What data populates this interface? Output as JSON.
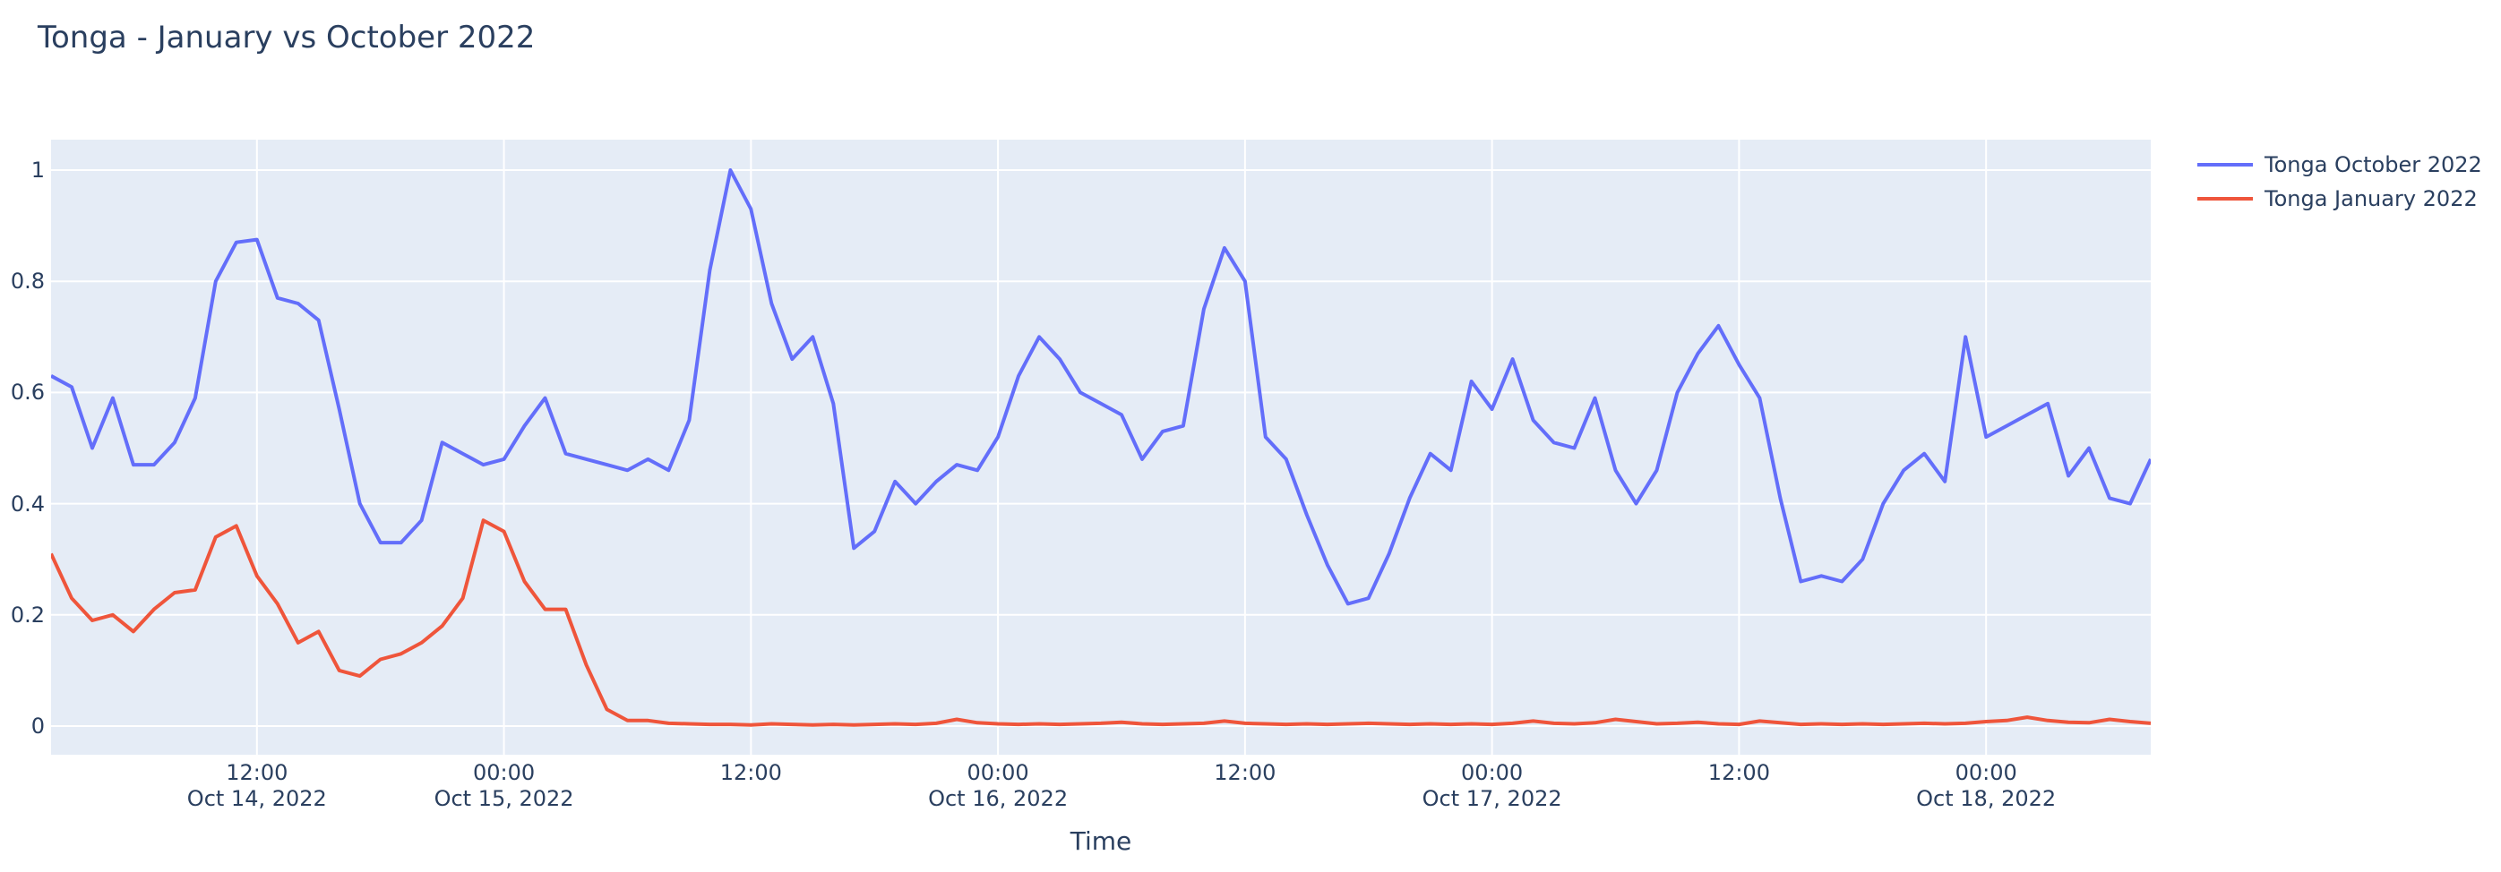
{
  "header": {
    "title": "Tonga - January vs October 2022"
  },
  "colors": {
    "background": "#ffffff",
    "plot_background": "#e5ecf6",
    "grid": "#ffffff",
    "text": "#2a3f5f",
    "series_october": "#636efa",
    "series_january": "#ef553b"
  },
  "chart_data": {
    "type": "line",
    "title": "Tonga - January vs October 2022",
    "xlabel": "Time",
    "ylabel": "",
    "x_start": "2022-10-14 02:00",
    "x_step_hours": 1,
    "n_points": 103,
    "ylim": [
      -0.052,
      1.055
    ],
    "grid": true,
    "legend_position": "right-top",
    "y_ticks": [
      0,
      0.2,
      0.4,
      0.6,
      0.8,
      1
    ],
    "y_tick_labels": [
      "0",
      "0.2",
      "0.4",
      "0.6",
      "0.8",
      "1"
    ],
    "x_ticks": [
      {
        "hour_index": 10,
        "time": "12:00",
        "date": "Oct 14, 2022"
      },
      {
        "hour_index": 22,
        "time": "00:00",
        "date": "Oct 15, 2022"
      },
      {
        "hour_index": 34,
        "time": "12:00",
        "date": ""
      },
      {
        "hour_index": 46,
        "time": "00:00",
        "date": "Oct 16, 2022"
      },
      {
        "hour_index": 58,
        "time": "12:00",
        "date": ""
      },
      {
        "hour_index": 70,
        "time": "00:00",
        "date": "Oct 17, 2022"
      },
      {
        "hour_index": 82,
        "time": "12:00",
        "date": ""
      },
      {
        "hour_index": 94,
        "time": "00:00",
        "date": "Oct 18, 2022"
      }
    ],
    "series": [
      {
        "name": "Tonga October 2022",
        "color": "#636efa",
        "values": [
          0.63,
          0.61,
          0.5,
          0.59,
          0.47,
          0.47,
          0.51,
          0.59,
          0.8,
          0.87,
          0.875,
          0.77,
          0.76,
          0.73,
          0.57,
          0.4,
          0.33,
          0.33,
          0.37,
          0.51,
          0.49,
          0.47,
          0.48,
          0.54,
          0.59,
          0.49,
          0.48,
          0.47,
          0.46,
          0.48,
          0.46,
          0.55,
          0.82,
          1.0,
          0.93,
          0.76,
          0.66,
          0.7,
          0.58,
          0.32,
          0.35,
          0.44,
          0.4,
          0.44,
          0.47,
          0.46,
          0.52,
          0.63,
          0.7,
          0.66,
          0.6,
          0.58,
          0.56,
          0.48,
          0.53,
          0.54,
          0.75,
          0.86,
          0.8,
          0.52,
          0.48,
          0.38,
          0.29,
          0.22,
          0.23,
          0.31,
          0.41,
          0.49,
          0.46,
          0.62,
          0.57,
          0.66,
          0.55,
          0.51,
          0.5,
          0.59,
          0.46,
          0.4,
          0.46,
          0.6,
          0.67,
          0.72,
          0.65,
          0.59,
          0.41,
          0.26,
          0.27,
          0.26,
          0.3,
          0.4,
          0.46,
          0.49,
          0.44,
          0.7,
          0.52,
          0.54,
          0.56,
          0.58,
          0.45,
          0.5,
          0.41,
          0.4,
          0.48
        ]
      },
      {
        "name": "Tonga January 2022",
        "color": "#ef553b",
        "values": [
          0.31,
          0.23,
          0.19,
          0.2,
          0.17,
          0.21,
          0.24,
          0.245,
          0.34,
          0.36,
          0.27,
          0.22,
          0.15,
          0.17,
          0.1,
          0.09,
          0.12,
          0.13,
          0.15,
          0.18,
          0.23,
          0.37,
          0.35,
          0.26,
          0.21,
          0.21,
          0.11,
          0.03,
          0.01,
          0.01,
          0.005,
          0.004,
          0.003,
          0.003,
          0.002,
          0.004,
          0.003,
          0.002,
          0.003,
          0.002,
          0.003,
          0.004,
          0.003,
          0.005,
          0.012,
          0.006,
          0.004,
          0.003,
          0.004,
          0.003,
          0.004,
          0.005,
          0.007,
          0.004,
          0.003,
          0.004,
          0.005,
          0.009,
          0.005,
          0.004,
          0.003,
          0.004,
          0.003,
          0.004,
          0.005,
          0.004,
          0.003,
          0.004,
          0.003,
          0.004,
          0.003,
          0.005,
          0.009,
          0.005,
          0.004,
          0.006,
          0.012,
          0.008,
          0.004,
          0.005,
          0.007,
          0.004,
          0.003,
          0.009,
          0.006,
          0.003,
          0.004,
          0.003,
          0.004,
          0.003,
          0.004,
          0.005,
          0.004,
          0.005,
          0.008,
          0.01,
          0.016,
          0.01,
          0.007,
          0.006,
          0.012,
          0.008,
          0.005
        ]
      }
    ]
  }
}
